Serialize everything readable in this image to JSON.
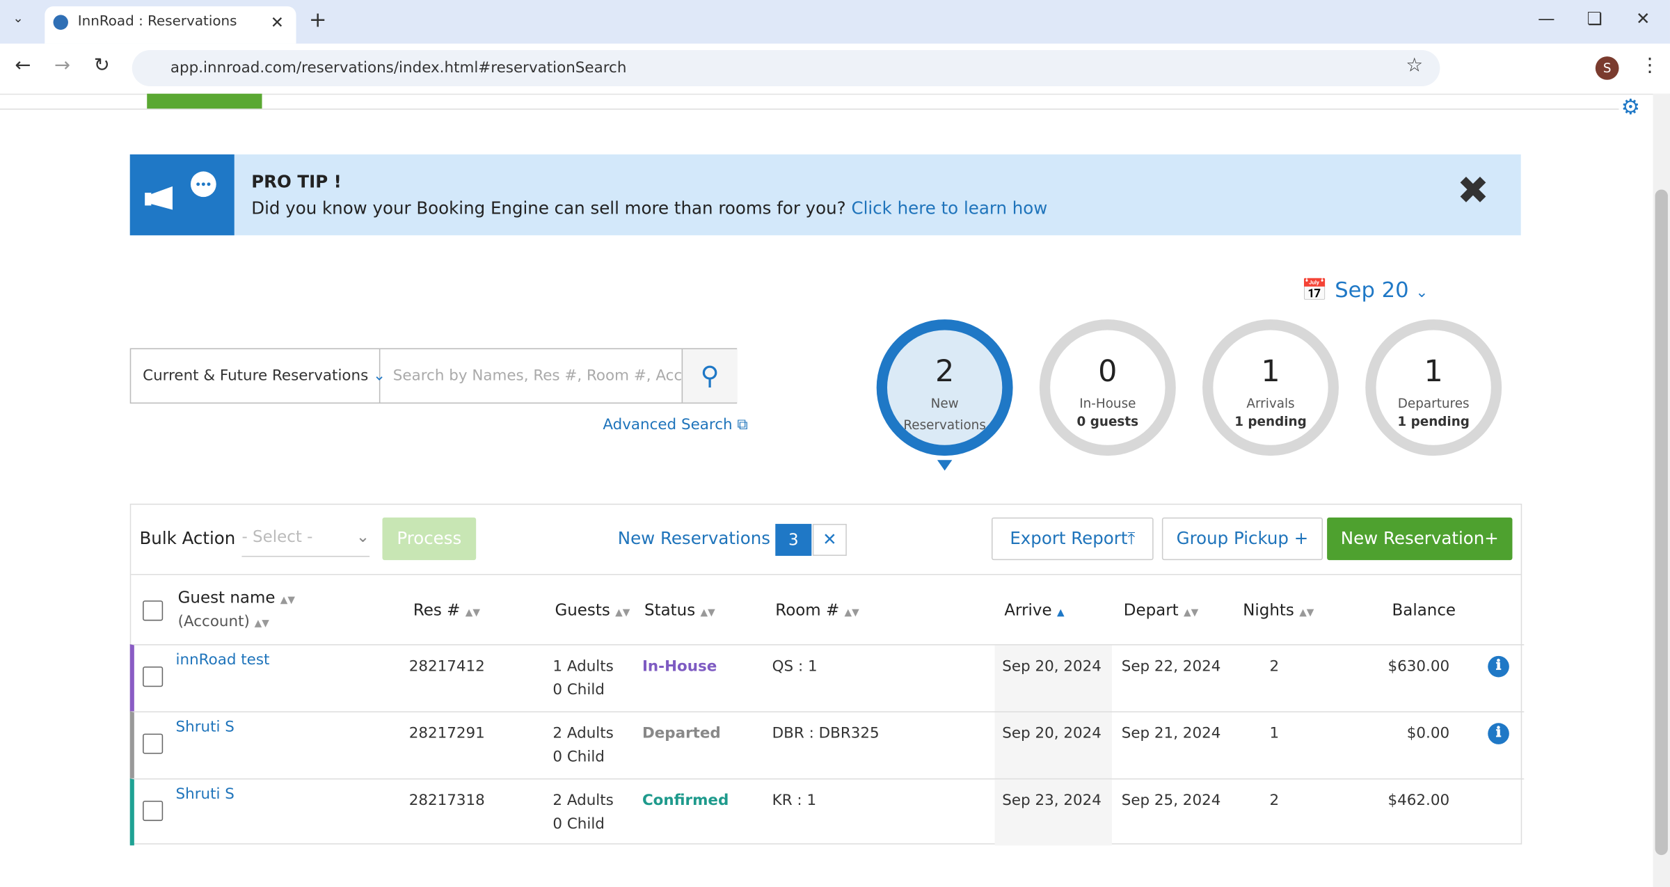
{
  "browser": {
    "tab_title": "InnRoad : Reservations",
    "url": "app.innroad.com/reservations/index.html#reservationSearch",
    "profile": "S"
  },
  "pro_tip": {
    "title": "PRO TIP !",
    "text": "Did you know your Booking Engine can sell more than rooms for you?",
    "link": "Click here to learn how"
  },
  "date": "Sep 20",
  "search": {
    "filter": "Current & Future Reservations",
    "placeholder": "Search by Names, Res #, Room #, Account",
    "advanced": "Advanced Search"
  },
  "stats": [
    {
      "value": "2",
      "label": "New Reservations"
    },
    {
      "value": "0",
      "label": "In-House",
      "sub": "0 guests"
    },
    {
      "value": "1",
      "label": "Arrivals",
      "sub": "1 pending"
    },
    {
      "value": "1",
      "label": "Departures",
      "sub": "1 pending"
    }
  ],
  "toolbar": {
    "bulk_action": "Bulk Action",
    "select": "- Select -",
    "process": "Process",
    "filter_label": "New Reservations",
    "filter_count": "3",
    "export": "Export Report",
    "group_pickup": "Group Pickup",
    "new_reservation": "New Reservation"
  },
  "table": {
    "headers": {
      "guest": "Guest name",
      "account": "(Account)",
      "res": "Res #",
      "guests": "Guests",
      "status": "Status",
      "room": "Room #",
      "arrive": "Arrive",
      "depart": "Depart",
      "nights": "Nights",
      "balance": "Balance"
    },
    "rows": [
      {
        "guest": "innRoad test",
        "res": "28217412",
        "adults": "1 Adults",
        "children": "0 Child",
        "status": "In-House",
        "room": "QS : 1",
        "arrive": "Sep 20, 2024",
        "depart": "Sep 22, 2024",
        "nights": "2",
        "balance": "$630.00"
      },
      {
        "guest": "Shruti S",
        "res": "28217291",
        "adults": "2 Adults",
        "children": "0 Child",
        "status": "Departed",
        "room": "DBR : DBR325",
        "arrive": "Sep 20, 2024",
        "depart": "Sep 21, 2024",
        "nights": "1",
        "balance": "$0.00"
      },
      {
        "guest": "Shruti S",
        "res": "28217318",
        "adults": "2 Adults",
        "children": "0 Child",
        "status": "Confirmed",
        "room": "KR : 1",
        "arrive": "Sep 23, 2024",
        "depart": "Sep 25, 2024",
        "nights": "2",
        "balance": "$462.00"
      }
    ]
  }
}
